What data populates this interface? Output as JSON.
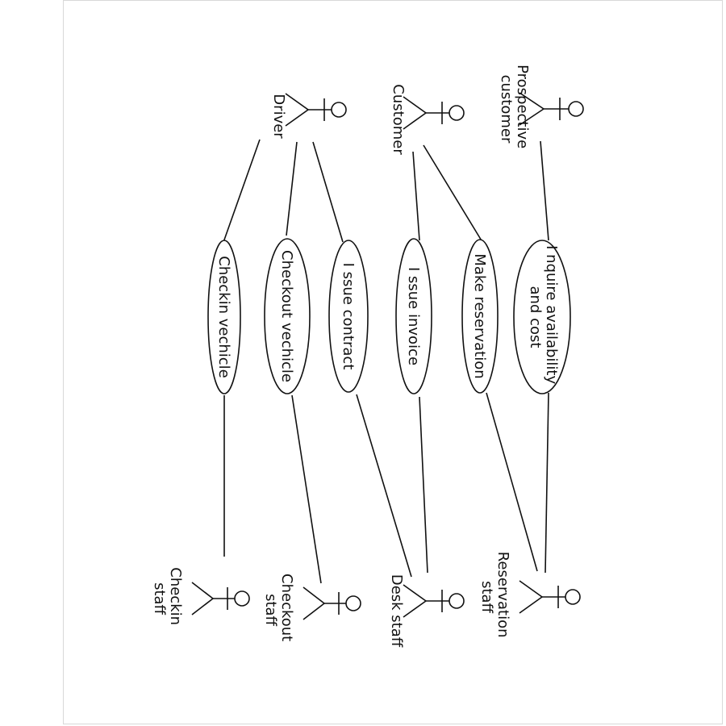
{
  "diagram": {
    "actors": {
      "prospective_customer": [
        "Prospective",
        "customer"
      ],
      "customer": [
        "Customer"
      ],
      "driver": [
        "Driver"
      ],
      "reservation_staff": [
        "Reservation",
        "staff"
      ],
      "desk_staff": [
        "Desk staff"
      ],
      "checkout_staff": [
        "Checkout",
        "staff"
      ],
      "checkin_staff": [
        "Checkin",
        "staff"
      ]
    },
    "use_cases": {
      "inquire": [
        "I nquire availability",
        "and cost"
      ],
      "make_reservation": [
        "Make reservation"
      ],
      "issue_invoice": [
        "I ssue invoice"
      ],
      "issue_contract": [
        "I ssue contract"
      ],
      "checkout_vehicle": [
        "Checkout vechicle"
      ],
      "checkin_vehicle": [
        "Checkin vechicle"
      ]
    }
  }
}
